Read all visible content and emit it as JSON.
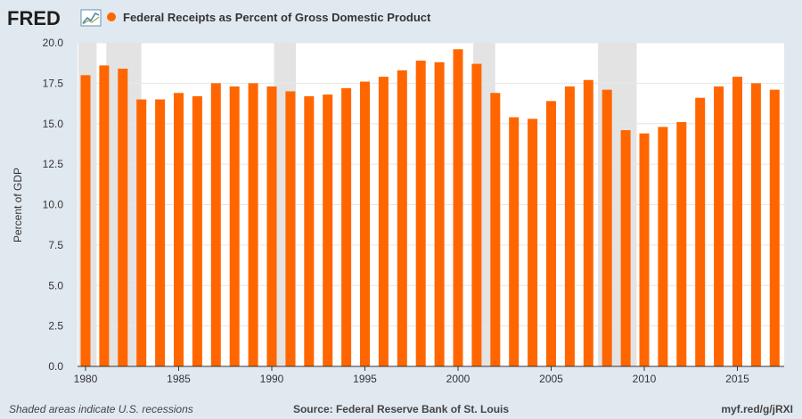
{
  "header": {
    "logo_text": "FRED",
    "series_title": "Federal Receipts as Percent of Gross Domestic Product",
    "series_color": "#ff6600"
  },
  "footer": {
    "recession_note": "Shaded areas indicate U.S. recessions",
    "source": "Source: Federal Reserve Bank of St. Louis",
    "short_url": "myf.red/g/jRXI"
  },
  "chart_data": {
    "type": "bar",
    "title": "Federal Receipts as Percent of Gross Domestic Product",
    "xlabel": "",
    "ylabel": "Percent of GDP",
    "ylim": [
      0,
      20
    ],
    "yticks": [
      0.0,
      2.5,
      5.0,
      7.5,
      10.0,
      12.5,
      15.0,
      17.5,
      20.0
    ],
    "ytick_labels": [
      "0.0",
      "2.5",
      "5.0",
      "7.5",
      "10.0",
      "12.5",
      "15.0",
      "17.5",
      "20.0"
    ],
    "xticks": [
      1980,
      1985,
      1990,
      1995,
      2000,
      2005,
      2010,
      2015
    ],
    "xtick_labels": [
      "1980",
      "1985",
      "1990",
      "1995",
      "2000",
      "2005",
      "2010",
      "2015"
    ],
    "grid": true,
    "bar_color": "#ff6600",
    "recession_color": "#e3e3e3",
    "categories": [
      1980,
      1981,
      1982,
      1983,
      1984,
      1985,
      1986,
      1987,
      1988,
      1989,
      1990,
      1991,
      1992,
      1993,
      1994,
      1995,
      1996,
      1997,
      1998,
      1999,
      2000,
      2001,
      2002,
      2003,
      2004,
      2005,
      2006,
      2007,
      2008,
      2009,
      2010,
      2011,
      2012,
      2013,
      2014,
      2015,
      2016,
      2017
    ],
    "values": [
      18.0,
      18.6,
      18.4,
      16.5,
      16.5,
      16.9,
      16.7,
      17.5,
      17.3,
      17.5,
      17.3,
      17.0,
      16.7,
      16.8,
      17.2,
      17.6,
      17.9,
      18.3,
      18.9,
      18.8,
      19.6,
      18.7,
      16.9,
      15.4,
      15.3,
      16.4,
      17.3,
      17.7,
      17.1,
      14.6,
      14.4,
      14.8,
      15.1,
      16.6,
      17.3,
      17.9,
      17.5,
      17.1
    ],
    "recessions": [
      {
        "start": 1980.0,
        "end": 1980.5
      },
      {
        "start": 1981.5,
        "end": 1982.9
      },
      {
        "start": 1990.5,
        "end": 1991.2
      },
      {
        "start": 2001.2,
        "end": 2001.9
      },
      {
        "start": 2007.9,
        "end": 2009.5
      }
    ]
  }
}
